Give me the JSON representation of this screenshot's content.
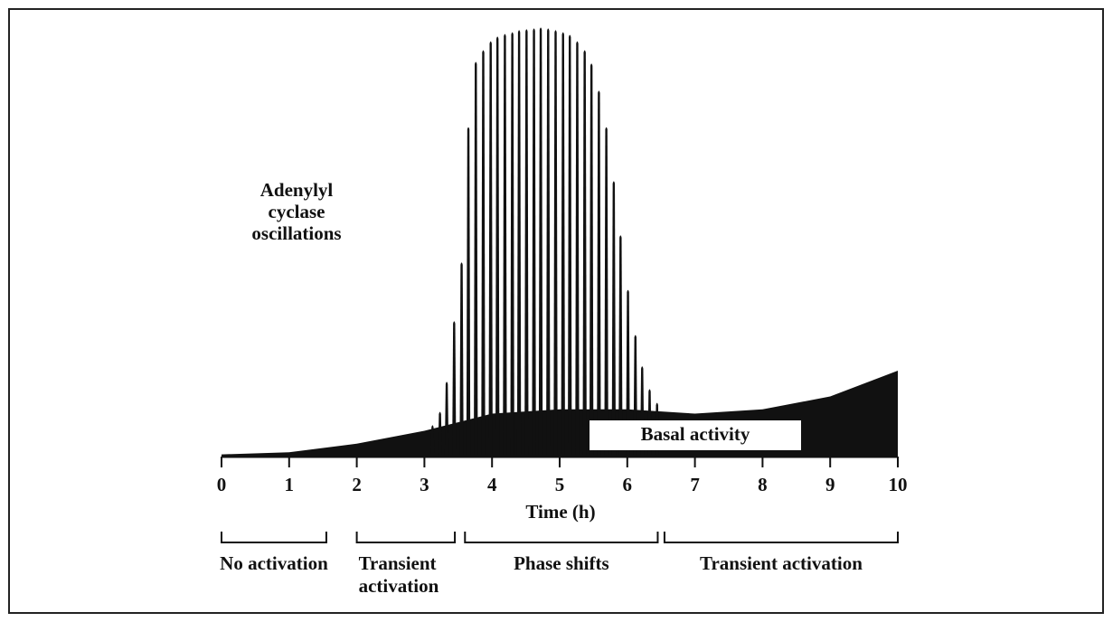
{
  "chart_data": {
    "type": "spike",
    "annotation": [
      "Adenylyl",
      "cyclase",
      "oscillations"
    ],
    "x_label": "Time (h)",
    "xlim": [
      0,
      10
    ],
    "xticks": [
      0,
      1,
      2,
      3,
      4,
      5,
      6,
      7,
      8,
      9,
      10
    ],
    "ylim": [
      0,
      100
    ],
    "color": "#111111",
    "basal": {
      "name": "Basal activity",
      "x": [
        0,
        1,
        2,
        3,
        4,
        5,
        6,
        7,
        8,
        9,
        10
      ],
      "values": [
        0.5,
        1,
        3,
        6,
        10,
        11,
        11,
        10,
        11,
        14,
        20
      ]
    },
    "spikes": {
      "x": [
        3.12,
        3.23,
        3.33,
        3.44,
        3.55,
        3.65,
        3.76,
        3.87,
        3.98,
        4.08,
        4.19,
        4.3,
        4.4,
        4.51,
        4.62,
        4.72,
        4.83,
        4.94,
        5.05,
        5.15,
        5.26,
        5.37,
        5.47,
        5.58,
        5.69,
        5.8,
        5.9,
        6.01,
        6.12,
        6.22,
        6.33,
        6.44
      ],
      "values": [
        7.4,
        10.5,
        17.5,
        31.6,
        45.3,
        76.8,
        92,
        94.7,
        96.8,
        97.9,
        98.5,
        98.9,
        99.4,
        99.6,
        99.8,
        100,
        99.8,
        99.4,
        98.9,
        98.3,
        96.8,
        94.7,
        91.6,
        85.3,
        76.8,
        64.2,
        51.6,
        38.9,
        28.4,
        21.1,
        15.8,
        12.6
      ]
    },
    "phases": [
      {
        "lines": [
          "No activation"
        ],
        "start": 0,
        "end": 1.55
      },
      {
        "lines": [
          "Transient",
          "activation"
        ],
        "start": 2.0,
        "end": 3.45
      },
      {
        "lines": [
          "Phase shifts"
        ],
        "start": 3.6,
        "end": 6.45
      },
      {
        "lines": [
          "Transient activation"
        ],
        "start": 6.55,
        "end": 10
      }
    ]
  }
}
